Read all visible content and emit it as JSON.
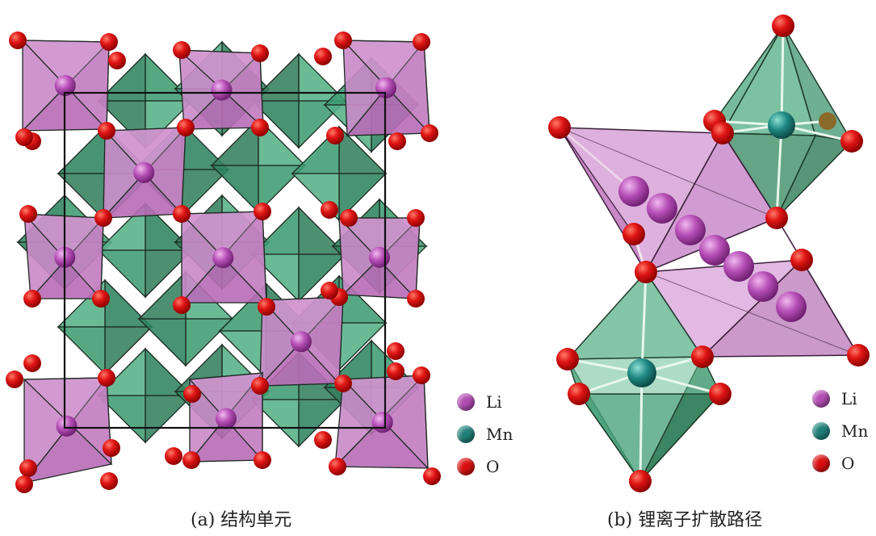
{
  "captions": {
    "a": "(a) 结构单元",
    "b": "(b) 锂离子扩散路径"
  },
  "legend": [
    {
      "label": "Li",
      "color": "#b24db3"
    },
    {
      "label": "Mn",
      "color": "#1f7f79"
    },
    {
      "label": "O",
      "color": "#d90f0f"
    }
  ],
  "colors": {
    "li_polyhedron": "#c77fc3",
    "mn_polyhedron": "#3d9e73",
    "oxygen": "#d90f0f",
    "li_ion": "#b24db3",
    "mn_ion": "#1f7f79",
    "bond": "#e6f4ea"
  }
}
